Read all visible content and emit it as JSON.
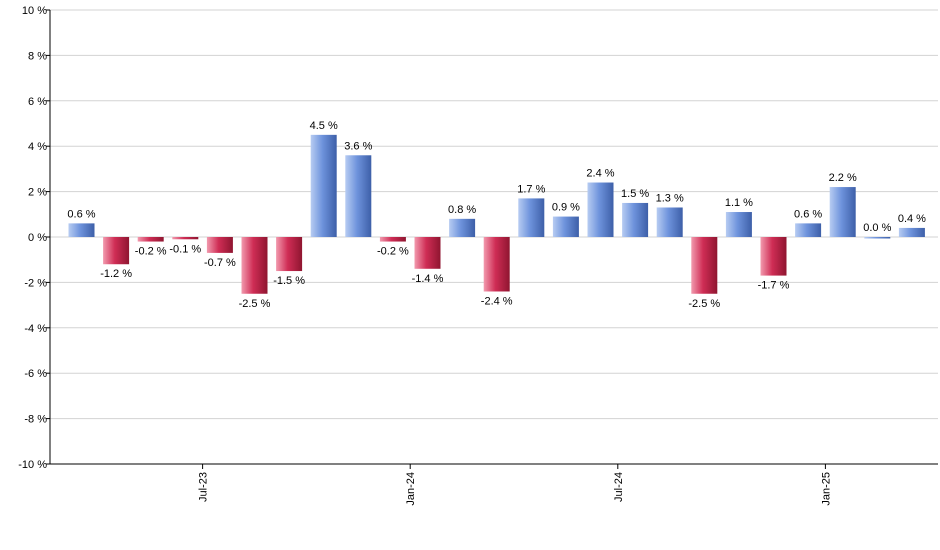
{
  "chart_data": {
    "type": "bar",
    "values": [
      0.6,
      -1.2,
      -0.2,
      -0.1,
      -0.7,
      -2.5,
      -1.5,
      4.5,
      3.6,
      -0.2,
      -1.4,
      0.8,
      -2.4,
      1.7,
      0.9,
      2.4,
      1.5,
      1.3,
      -2.5,
      1.1,
      -1.7,
      0.6,
      2.2,
      0.0,
      0.4
    ],
    "value_labels": [
      "0.6 %",
      "-1.2 %",
      "-0.2 %",
      "-0.1 %",
      "-0.7 %",
      "-2.5 %",
      "-1.5 %",
      "4.5 %",
      "3.6 %",
      "-0.2 %",
      "-1.4 %",
      "0.8 %",
      "-2.4 %",
      "1.7 %",
      "0.9 %",
      "2.4 %",
      "1.5 %",
      "1.3 %",
      "-2.5 %",
      "1.1 %",
      "-1.7 %",
      "0.6 %",
      "2.2 %",
      "0.0 %",
      "0.4 %"
    ],
    "ylim": [
      -10,
      10
    ],
    "y_ticks": [
      10,
      8,
      6,
      4,
      2,
      0,
      -2,
      -4,
      -6,
      -8,
      -10
    ],
    "y_tick_labels": [
      "10 %",
      "8 %",
      "6 %",
      "4 %",
      "2 %",
      "0 %",
      "-2 %",
      "-4 %",
      "-6 %",
      "-8 %",
      "-10 %"
    ],
    "x_tick_labels": [
      {
        "label": "Jul-23",
        "bar_index": 3.5
      },
      {
        "label": "Jan-24",
        "bar_index": 9.5
      },
      {
        "label": "Jul-24",
        "bar_index": 15.5
      },
      {
        "label": "Jan-25",
        "bar_index": 21.5
      }
    ],
    "grid": true,
    "legend": "none",
    "colors": {
      "positive_light": "#b7ccf2",
      "positive_mid": "#6e93dc",
      "positive_dark": "#3d5fa8",
      "negative_light": "#f29aae",
      "negative_mid": "#cf2d55",
      "negative_dark": "#8f1530",
      "grid": "#d3d3d3",
      "axis": "#000000"
    }
  }
}
